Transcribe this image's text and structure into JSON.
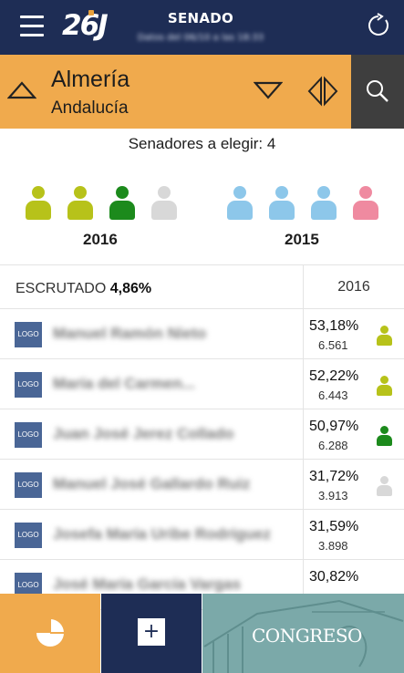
{
  "header": {
    "title": "SENADO",
    "subtitle": "Datos del 06/10 a las 18:33",
    "logo_text": "26J"
  },
  "region": {
    "name": "Almería",
    "parent": "Andalucía"
  },
  "senators": {
    "to_elect_label": "Senadores a elegir: 4",
    "groups": [
      {
        "year": "2016",
        "colors": [
          "#b7c21a",
          "#b7c21a",
          "#1c8a1c",
          "#d8d8d8"
        ]
      },
      {
        "year": "2015",
        "colors": [
          "#8dc7ea",
          "#8dc7ea",
          "#8dc7ea",
          "#ef8aa0"
        ]
      }
    ]
  },
  "table": {
    "scrutiny_label": "ESCRUTADO",
    "scrutiny_value": "4,86%",
    "year_header": "2016",
    "rows": [
      {
        "logo": "LOGO",
        "name": "Manuel Ramón Nieto",
        "pct": "53,18%",
        "votes": "6.561",
        "color": "#b7c21a"
      },
      {
        "logo": "LOGO",
        "name": "María del Carmen...",
        "pct": "52,22%",
        "votes": "6.443",
        "color": "#b7c21a"
      },
      {
        "logo": "LOGO",
        "name": "Juan José Jerez Collado",
        "pct": "50,97%",
        "votes": "6.288",
        "color": "#1c8a1c"
      },
      {
        "logo": "LOGO",
        "name": "Manuel José Gallardo Ruiz",
        "pct": "31,72%",
        "votes": "3.913",
        "color": "#d8d8d8"
      },
      {
        "logo": "LOGO",
        "name": "Josefa María Uribe Rodríguez",
        "pct": "31,59%",
        "votes": "3.898",
        "color": null
      },
      {
        "logo": "LOGO",
        "name": "José María García Vargas",
        "pct": "30,82%",
        "votes": "",
        "color": null
      }
    ]
  },
  "bottom": {
    "chart_icon": "pie-chart-icon",
    "add_label": "+",
    "congreso_label": "CONGRESO"
  },
  "colors": {
    "navy": "#1e2d55",
    "orange": "#f0aa4d",
    "dark": "#3e3e3e",
    "teal": "#7ba9a9"
  }
}
